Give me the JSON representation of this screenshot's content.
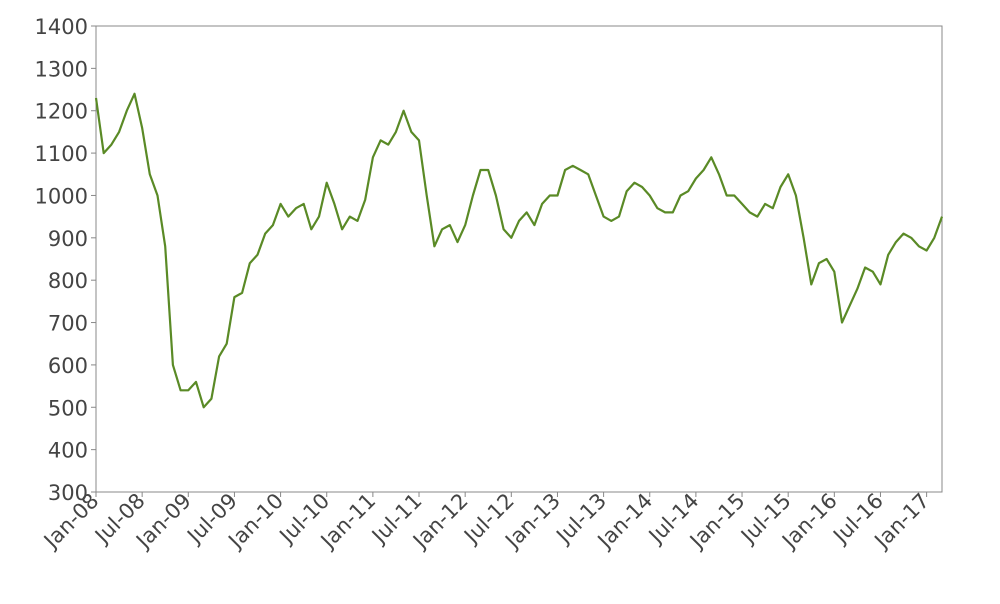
{
  "chart_data": {
    "type": "line",
    "x": [
      "2008-01",
      "2008-02",
      "2008-03",
      "2008-04",
      "2008-05",
      "2008-06",
      "2008-07",
      "2008-08",
      "2008-09",
      "2008-10",
      "2008-11",
      "2008-12",
      "2009-01",
      "2009-02",
      "2009-03",
      "2009-04",
      "2009-05",
      "2009-06",
      "2009-07",
      "2009-08",
      "2009-09",
      "2009-10",
      "2009-11",
      "2009-12",
      "2010-01",
      "2010-02",
      "2010-03",
      "2010-04",
      "2010-05",
      "2010-06",
      "2010-07",
      "2010-08",
      "2010-09",
      "2010-10",
      "2010-11",
      "2010-12",
      "2011-01",
      "2011-02",
      "2011-03",
      "2011-04",
      "2011-05",
      "2011-06",
      "2011-07",
      "2011-08",
      "2011-09",
      "2011-10",
      "2011-11",
      "2011-12",
      "2012-01",
      "2012-02",
      "2012-03",
      "2012-04",
      "2012-05",
      "2012-06",
      "2012-07",
      "2012-08",
      "2012-09",
      "2012-10",
      "2012-11",
      "2012-12",
      "2013-01",
      "2013-02",
      "2013-03",
      "2013-04",
      "2013-05",
      "2013-06",
      "2013-07",
      "2013-08",
      "2013-09",
      "2013-10",
      "2013-11",
      "2013-12",
      "2014-01",
      "2014-02",
      "2014-03",
      "2014-04",
      "2014-05",
      "2014-06",
      "2014-07",
      "2014-08",
      "2014-09",
      "2014-10",
      "2014-11",
      "2014-12",
      "2015-01",
      "2015-02",
      "2015-03",
      "2015-04",
      "2015-05",
      "2015-06",
      "2015-07",
      "2015-08",
      "2015-09",
      "2015-10",
      "2015-11",
      "2015-12",
      "2016-01",
      "2016-02",
      "2016-03",
      "2016-04",
      "2016-05",
      "2016-06",
      "2016-07",
      "2016-08",
      "2016-09",
      "2016-10",
      "2016-11",
      "2016-12",
      "2017-01",
      "2017-02",
      "2017-03"
    ],
    "series": [
      {
        "color": "#5a8a26",
        "values": [
          1230,
          1100,
          1120,
          1150,
          1200,
          1240,
          1160,
          1050,
          1000,
          880,
          600,
          540,
          540,
          560,
          500,
          520,
          620,
          650,
          760,
          770,
          840,
          860,
          910,
          930,
          980,
          950,
          970,
          980,
          920,
          950,
          1030,
          980,
          920,
          950,
          940,
          990,
          1090,
          1130,
          1120,
          1150,
          1200,
          1150,
          1130,
          1000,
          880,
          920,
          930,
          890,
          930,
          1000,
          1060,
          1060,
          1000,
          920,
          900,
          940,
          960,
          930,
          980,
          1000,
          1000,
          1060,
          1070,
          1060,
          1050,
          1000,
          950,
          940,
          950,
          1010,
          1030,
          1020,
          1000,
          970,
          960,
          960,
          1000,
          1010,
          1040,
          1060,
          1090,
          1050,
          1000,
          1000,
          980,
          960,
          950,
          980,
          970,
          1020,
          1050,
          1000,
          900,
          790,
          840,
          850,
          820,
          700,
          740,
          780,
          830,
          820,
          790,
          860,
          890,
          910,
          900,
          880,
          870,
          900,
          950
        ]
      }
    ],
    "xlim": [
      "2008-01",
      "2017-03"
    ],
    "xticks": [
      {
        "value": "2008-01",
        "label": "Jan-08"
      },
      {
        "value": "2008-07",
        "label": "Jul-08"
      },
      {
        "value": "2009-01",
        "label": "Jan-09"
      },
      {
        "value": "2009-07",
        "label": "Jul-09"
      },
      {
        "value": "2010-01",
        "label": "Jan-10"
      },
      {
        "value": "2010-07",
        "label": "Jul-10"
      },
      {
        "value": "2011-01",
        "label": "Jan-11"
      },
      {
        "value": "2011-07",
        "label": "Jul-11"
      },
      {
        "value": "2012-01",
        "label": "Jan-12"
      },
      {
        "value": "2012-07",
        "label": "Jul-12"
      },
      {
        "value": "2013-01",
        "label": "Jan-13"
      },
      {
        "value": "2013-07",
        "label": "Jul-13"
      },
      {
        "value": "2014-01",
        "label": "Jan-14"
      },
      {
        "value": "2014-07",
        "label": "Jul-14"
      },
      {
        "value": "2015-01",
        "label": "Jan-15"
      },
      {
        "value": "2015-07",
        "label": "Jul-15"
      },
      {
        "value": "2016-01",
        "label": "Jan-16"
      },
      {
        "value": "2016-07",
        "label": "Jul-16"
      },
      {
        "value": "2017-01",
        "label": "Jan-17"
      }
    ],
    "ylim": [
      300,
      1400
    ],
    "yticks": [
      300,
      400,
      500,
      600,
      700,
      800,
      900,
      1000,
      1100,
      1200,
      1300,
      1400
    ]
  }
}
